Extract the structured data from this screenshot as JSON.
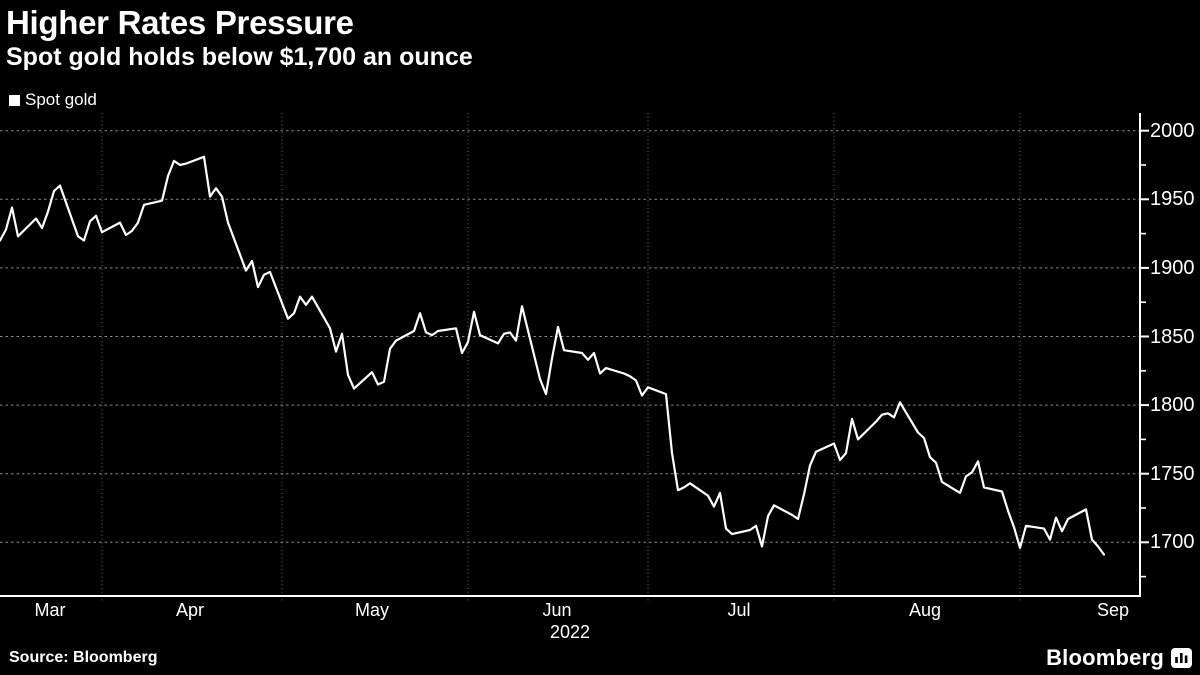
{
  "header": {
    "title": "Higher Rates Pressure",
    "subtitle": "Spot gold holds below $1,700 an ounce"
  },
  "legend": {
    "items": [
      {
        "label": "Spot gold",
        "color": "#ffffff"
      }
    ]
  },
  "footer": {
    "source_label": "Source: Bloomberg",
    "brand_label": "Bloomberg",
    "brand_icon": "bloomberg-bars-icon"
  },
  "colors": {
    "background": "#000000",
    "line": "#ffffff",
    "axis": "#ffffff",
    "gridline_horizontal": "#8a8a8a",
    "gridline_vertical": "#6e6e6e",
    "text": "#ffffff"
  },
  "chart_data": {
    "type": "line",
    "title": "Higher Rates Pressure",
    "subtitle": "Spot gold holds below $1,700 an ounce",
    "legend_position": "top-left",
    "grid": true,
    "y_axis": {
      "side": "right",
      "min": 1660,
      "max": 2011,
      "major_ticks": [
        2000,
        1950,
        1900,
        1850,
        1800,
        1750,
        1700
      ],
      "minor_ticks": [
        1975,
        1925,
        1875,
        1825,
        1775,
        1725,
        1675
      ],
      "tick_labels": [
        "2000",
        "1950",
        "1900",
        "1850",
        "1800",
        "1750",
        "1700"
      ]
    },
    "x_axis": {
      "labels": [
        "Mar",
        "Apr",
        "May",
        "Jun",
        "Jul",
        "Aug",
        "Sep"
      ],
      "year_label": "2022",
      "gridlines": "month-start",
      "start_date": "2022-03-15",
      "end_date": "2022-09-15"
    },
    "series": [
      {
        "name": "Spot gold",
        "color": "#ffffff",
        "dates": [
          "2022-03-15",
          "2022-03-16",
          "2022-03-17",
          "2022-03-18",
          "2022-03-21",
          "2022-03-22",
          "2022-03-23",
          "2022-03-24",
          "2022-03-25",
          "2022-03-28",
          "2022-03-29",
          "2022-03-30",
          "2022-03-31",
          "2022-04-01",
          "2022-04-04",
          "2022-04-05",
          "2022-04-06",
          "2022-04-07",
          "2022-04-08",
          "2022-04-11",
          "2022-04-12",
          "2022-04-13",
          "2022-04-14",
          "2022-04-15",
          "2022-04-18",
          "2022-04-19",
          "2022-04-20",
          "2022-04-21",
          "2022-04-22",
          "2022-04-25",
          "2022-04-26",
          "2022-04-27",
          "2022-04-28",
          "2022-04-29",
          "2022-05-02",
          "2022-05-03",
          "2022-05-04",
          "2022-05-05",
          "2022-05-06",
          "2022-05-09",
          "2022-05-10",
          "2022-05-11",
          "2022-05-12",
          "2022-05-13",
          "2022-05-16",
          "2022-05-17",
          "2022-05-18",
          "2022-05-19",
          "2022-05-20",
          "2022-05-23",
          "2022-05-24",
          "2022-05-25",
          "2022-05-26",
          "2022-05-27",
          "2022-05-30",
          "2022-05-31",
          "2022-06-01",
          "2022-06-02",
          "2022-06-03",
          "2022-06-06",
          "2022-06-07",
          "2022-06-08",
          "2022-06-09",
          "2022-06-10",
          "2022-06-13",
          "2022-06-14",
          "2022-06-15",
          "2022-06-16",
          "2022-06-17",
          "2022-06-20",
          "2022-06-21",
          "2022-06-22",
          "2022-06-23",
          "2022-06-24",
          "2022-06-27",
          "2022-06-28",
          "2022-06-29",
          "2022-06-30",
          "2022-07-01",
          "2022-07-04",
          "2022-07-05",
          "2022-07-06",
          "2022-07-07",
          "2022-07-08",
          "2022-07-11",
          "2022-07-12",
          "2022-07-13",
          "2022-07-14",
          "2022-07-15",
          "2022-07-18",
          "2022-07-19",
          "2022-07-20",
          "2022-07-21",
          "2022-07-22",
          "2022-07-25",
          "2022-07-26",
          "2022-07-27",
          "2022-07-28",
          "2022-07-29",
          "2022-08-01",
          "2022-08-02",
          "2022-08-03",
          "2022-08-04",
          "2022-08-05",
          "2022-08-08",
          "2022-08-09",
          "2022-08-10",
          "2022-08-11",
          "2022-08-12",
          "2022-08-15",
          "2022-08-16",
          "2022-08-17",
          "2022-08-18",
          "2022-08-19",
          "2022-08-22",
          "2022-08-23",
          "2022-08-24",
          "2022-08-25",
          "2022-08-26",
          "2022-08-29",
          "2022-08-30",
          "2022-08-31",
          "2022-09-01",
          "2022-09-02",
          "2022-09-05",
          "2022-09-06",
          "2022-09-07",
          "2022-09-08",
          "2022-09-09",
          "2022-09-12",
          "2022-09-13",
          "2022-09-14",
          "2022-09-15"
        ],
        "values": [
          1920,
          1928,
          1944,
          1923,
          1936,
          1929,
          1941,
          1956,
          1960,
          1923,
          1920,
          1934,
          1938,
          1926,
          1933,
          1924,
          1927,
          1933,
          1946,
          1949,
          1967,
          1978,
          1975,
          1976,
          1981,
          1952,
          1958,
          1952,
          1933,
          1898,
          1905,
          1886,
          1895,
          1897,
          1863,
          1867,
          1879,
          1873,
          1879,
          1856,
          1839,
          1852,
          1822,
          1812,
          1824,
          1815,
          1817,
          1841,
          1847,
          1854,
          1867,
          1853,
          1851,
          1854,
          1856,
          1838,
          1846,
          1868,
          1851,
          1845,
          1852,
          1853,
          1847,
          1872,
          1819,
          1808,
          1834,
          1857,
          1840,
          1838,
          1833,
          1838,
          1823,
          1827,
          1823,
          1821,
          1818,
          1807,
          1813,
          1808,
          1765,
          1738,
          1740,
          1743,
          1734,
          1726,
          1736,
          1710,
          1706,
          1709,
          1712,
          1697,
          1719,
          1727,
          1720,
          1717,
          1735,
          1756,
          1766,
          1772,
          1760,
          1765,
          1790,
          1775,
          1788,
          1793,
          1794,
          1791,
          1802,
          1780,
          1776,
          1762,
          1758,
          1744,
          1736,
          1748,
          1751,
          1759,
          1740,
          1737,
          1723,
          1711,
          1696,
          1712,
          1710,
          1702,
          1718,
          1708,
          1717,
          1724,
          1702,
          1697,
          1691
        ]
      }
    ]
  }
}
